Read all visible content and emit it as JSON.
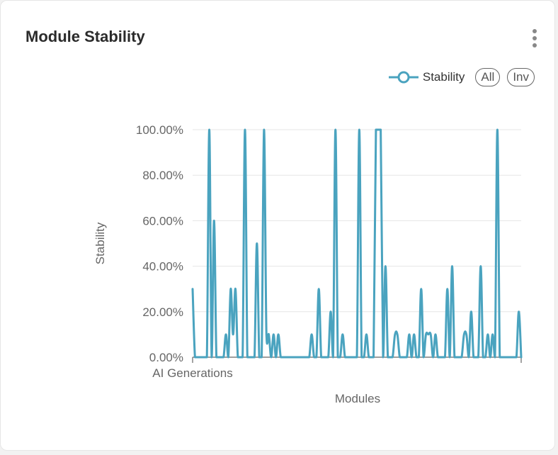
{
  "card": {
    "title": "Module Stability"
  },
  "legend": {
    "series_label": "Stability",
    "all_label": "All",
    "inv_label": "Inv"
  },
  "colors": {
    "line": "#4aa3bf",
    "grid": "#e6e6e6",
    "text": "#666666"
  },
  "icons": {
    "menu": "kebab-vertical-dots-icon"
  },
  "chart_data": {
    "type": "line",
    "title": "Module Stability",
    "xlabel": "Modules",
    "ylabel": "Stability",
    "x_tick_labels": [
      "AI Generations"
    ],
    "y_tick_labels": [
      "0.00%",
      "20.00%",
      "40.00%",
      "60.00%",
      "80.00%",
      "100.00%"
    ],
    "ylim": [
      0,
      100
    ],
    "grid": true,
    "legend_position": "top-right",
    "series": [
      {
        "name": "Stability",
        "values": [
          30,
          0,
          0,
          0,
          0,
          0,
          0,
          100,
          0,
          60,
          0,
          0,
          0,
          0,
          10,
          0,
          30,
          10,
          30,
          0,
          0,
          0,
          100,
          0,
          0,
          0,
          0,
          50,
          0,
          0,
          100,
          10,
          10,
          0,
          10,
          0,
          10,
          0,
          0,
          0,
          0,
          0,
          0,
          0,
          0,
          0,
          0,
          0,
          0,
          0,
          10,
          0,
          0,
          30,
          0,
          0,
          0,
          0,
          20,
          0,
          100,
          0,
          0,
          10,
          0,
          0,
          0,
          0,
          0,
          0,
          100,
          0,
          0,
          10,
          0,
          0,
          0,
          100,
          100,
          100,
          0,
          40,
          0,
          0,
          0,
          10,
          10,
          0,
          0,
          0,
          0,
          10,
          0,
          10,
          0,
          0,
          30,
          0,
          10,
          10,
          10,
          0,
          10,
          0,
          0,
          0,
          0,
          30,
          0,
          40,
          0,
          0,
          0,
          0,
          10,
          10,
          0,
          20,
          0,
          0,
          0,
          40,
          0,
          0,
          10,
          0,
          10,
          0,
          100,
          0,
          0,
          0,
          0,
          0,
          0,
          0,
          0,
          20,
          0
        ]
      }
    ]
  }
}
